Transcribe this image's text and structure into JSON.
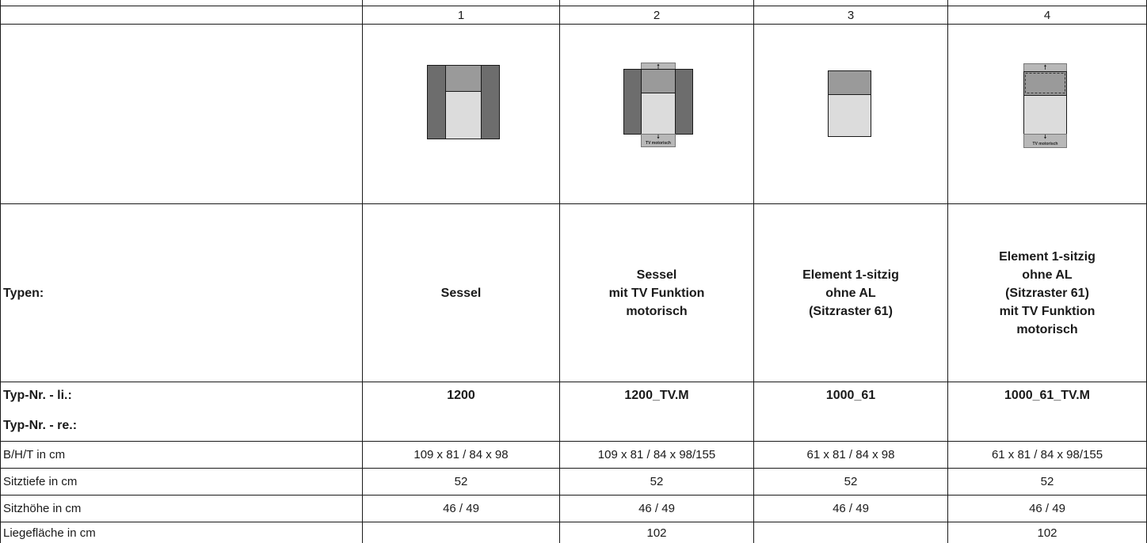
{
  "header": {
    "columns": [
      "1",
      "2",
      "3",
      "4"
    ]
  },
  "labels": {
    "typen": "Typen:",
    "typ_nr_li": "Typ-Nr. - li.:",
    "typ_nr_re": "Typ-Nr. - re.:",
    "bht": "B/H/T in cm",
    "sitztiefe": "Sitztiefe in cm",
    "sitzhoehe": "Sitzhöhe in cm",
    "liegeflaeche": "Liegefläche in cm"
  },
  "products": [
    {
      "type": "Sessel",
      "typ_nr": "1200",
      "bht": "109 x 81 / 84 x 98",
      "sitztiefe": "52",
      "sitzhoehe": "46 / 49",
      "liegeflaeche": "",
      "icon": "armchair-icon"
    },
    {
      "type": "Sessel\nmit TV Funktion\nmotorisch",
      "typ_nr": "1200_TV.M",
      "bht": "109 x 81 / 84 x 98/155",
      "sitztiefe": "52",
      "sitzhoehe": "46 / 49",
      "liegeflaeche": "102",
      "icon": "armchair-tv-icon",
      "icon_label": "TV motorisch"
    },
    {
      "type": "Element 1-sitzig\nohne AL\n(Sitzraster 61)",
      "typ_nr": "1000_61",
      "bht": "61 x 81 / 84 x 98",
      "sitztiefe": "52",
      "sitzhoehe": "46 / 49",
      "liegeflaeche": "",
      "icon": "seat-element-icon"
    },
    {
      "type": "Element 1-sitzig\nohne AL\n(Sitzraster 61)\nmit TV Funktion\nmotorisch",
      "typ_nr": "1000_61_TV.M",
      "bht": "61 x 81 / 84 x 98/155",
      "sitztiefe": "52",
      "sitzhoehe": "46 / 49",
      "liegeflaeche": "102",
      "icon": "seat-element-tv-icon",
      "icon_label": "TV motorisch"
    }
  ],
  "colors": {
    "armrest": "#6d6d6d",
    "backrest": "#9a9a9a",
    "seat": "#dcdcdc",
    "tv_panel": "#b8b8b8",
    "line": "#1a1a1a"
  }
}
